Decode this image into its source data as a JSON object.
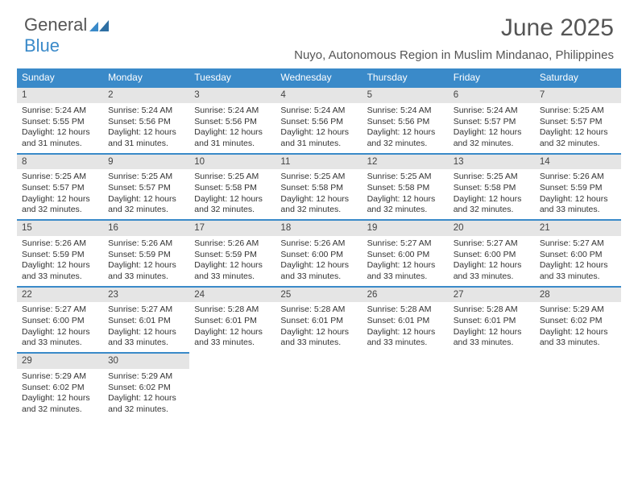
{
  "brand": {
    "part1": "General",
    "part2": "Blue"
  },
  "title": "June 2025",
  "location": "Nuyo, Autonomous Region in Muslim Mindanao, Philippines",
  "colors": {
    "header_bg": "#3a8ac9",
    "daynum_bg": "#e5e5e5",
    "daynum_border": "#3a8ac9",
    "text": "#333333",
    "title_text": "#555555",
    "background": "#ffffff"
  },
  "weekdays": [
    "Sunday",
    "Monday",
    "Tuesday",
    "Wednesday",
    "Thursday",
    "Friday",
    "Saturday"
  ],
  "weeks": [
    [
      {
        "n": "1",
        "sr": "5:24 AM",
        "ss": "5:55 PM",
        "dl": "12 hours and 31 minutes."
      },
      {
        "n": "2",
        "sr": "5:24 AM",
        "ss": "5:56 PM",
        "dl": "12 hours and 31 minutes."
      },
      {
        "n": "3",
        "sr": "5:24 AM",
        "ss": "5:56 PM",
        "dl": "12 hours and 31 minutes."
      },
      {
        "n": "4",
        "sr": "5:24 AM",
        "ss": "5:56 PM",
        "dl": "12 hours and 31 minutes."
      },
      {
        "n": "5",
        "sr": "5:24 AM",
        "ss": "5:56 PM",
        "dl": "12 hours and 32 minutes."
      },
      {
        "n": "6",
        "sr": "5:24 AM",
        "ss": "5:57 PM",
        "dl": "12 hours and 32 minutes."
      },
      {
        "n": "7",
        "sr": "5:25 AM",
        "ss": "5:57 PM",
        "dl": "12 hours and 32 minutes."
      }
    ],
    [
      {
        "n": "8",
        "sr": "5:25 AM",
        "ss": "5:57 PM",
        "dl": "12 hours and 32 minutes."
      },
      {
        "n": "9",
        "sr": "5:25 AM",
        "ss": "5:57 PM",
        "dl": "12 hours and 32 minutes."
      },
      {
        "n": "10",
        "sr": "5:25 AM",
        "ss": "5:58 PM",
        "dl": "12 hours and 32 minutes."
      },
      {
        "n": "11",
        "sr": "5:25 AM",
        "ss": "5:58 PM",
        "dl": "12 hours and 32 minutes."
      },
      {
        "n": "12",
        "sr": "5:25 AM",
        "ss": "5:58 PM",
        "dl": "12 hours and 32 minutes."
      },
      {
        "n": "13",
        "sr": "5:25 AM",
        "ss": "5:58 PM",
        "dl": "12 hours and 32 minutes."
      },
      {
        "n": "14",
        "sr": "5:26 AM",
        "ss": "5:59 PM",
        "dl": "12 hours and 33 minutes."
      }
    ],
    [
      {
        "n": "15",
        "sr": "5:26 AM",
        "ss": "5:59 PM",
        "dl": "12 hours and 33 minutes."
      },
      {
        "n": "16",
        "sr": "5:26 AM",
        "ss": "5:59 PM",
        "dl": "12 hours and 33 minutes."
      },
      {
        "n": "17",
        "sr": "5:26 AM",
        "ss": "5:59 PM",
        "dl": "12 hours and 33 minutes."
      },
      {
        "n": "18",
        "sr": "5:26 AM",
        "ss": "6:00 PM",
        "dl": "12 hours and 33 minutes."
      },
      {
        "n": "19",
        "sr": "5:27 AM",
        "ss": "6:00 PM",
        "dl": "12 hours and 33 minutes."
      },
      {
        "n": "20",
        "sr": "5:27 AM",
        "ss": "6:00 PM",
        "dl": "12 hours and 33 minutes."
      },
      {
        "n": "21",
        "sr": "5:27 AM",
        "ss": "6:00 PM",
        "dl": "12 hours and 33 minutes."
      }
    ],
    [
      {
        "n": "22",
        "sr": "5:27 AM",
        "ss": "6:00 PM",
        "dl": "12 hours and 33 minutes."
      },
      {
        "n": "23",
        "sr": "5:27 AM",
        "ss": "6:01 PM",
        "dl": "12 hours and 33 minutes."
      },
      {
        "n": "24",
        "sr": "5:28 AM",
        "ss": "6:01 PM",
        "dl": "12 hours and 33 minutes."
      },
      {
        "n": "25",
        "sr": "5:28 AM",
        "ss": "6:01 PM",
        "dl": "12 hours and 33 minutes."
      },
      {
        "n": "26",
        "sr": "5:28 AM",
        "ss": "6:01 PM",
        "dl": "12 hours and 33 minutes."
      },
      {
        "n": "27",
        "sr": "5:28 AM",
        "ss": "6:01 PM",
        "dl": "12 hours and 33 minutes."
      },
      {
        "n": "28",
        "sr": "5:29 AM",
        "ss": "6:02 PM",
        "dl": "12 hours and 33 minutes."
      }
    ],
    [
      {
        "n": "29",
        "sr": "5:29 AM",
        "ss": "6:02 PM",
        "dl": "12 hours and 32 minutes."
      },
      {
        "n": "30",
        "sr": "5:29 AM",
        "ss": "6:02 PM",
        "dl": "12 hours and 32 minutes."
      },
      null,
      null,
      null,
      null,
      null
    ]
  ],
  "labels": {
    "sunrise": "Sunrise: ",
    "sunset": "Sunset: ",
    "daylight": "Daylight: "
  }
}
